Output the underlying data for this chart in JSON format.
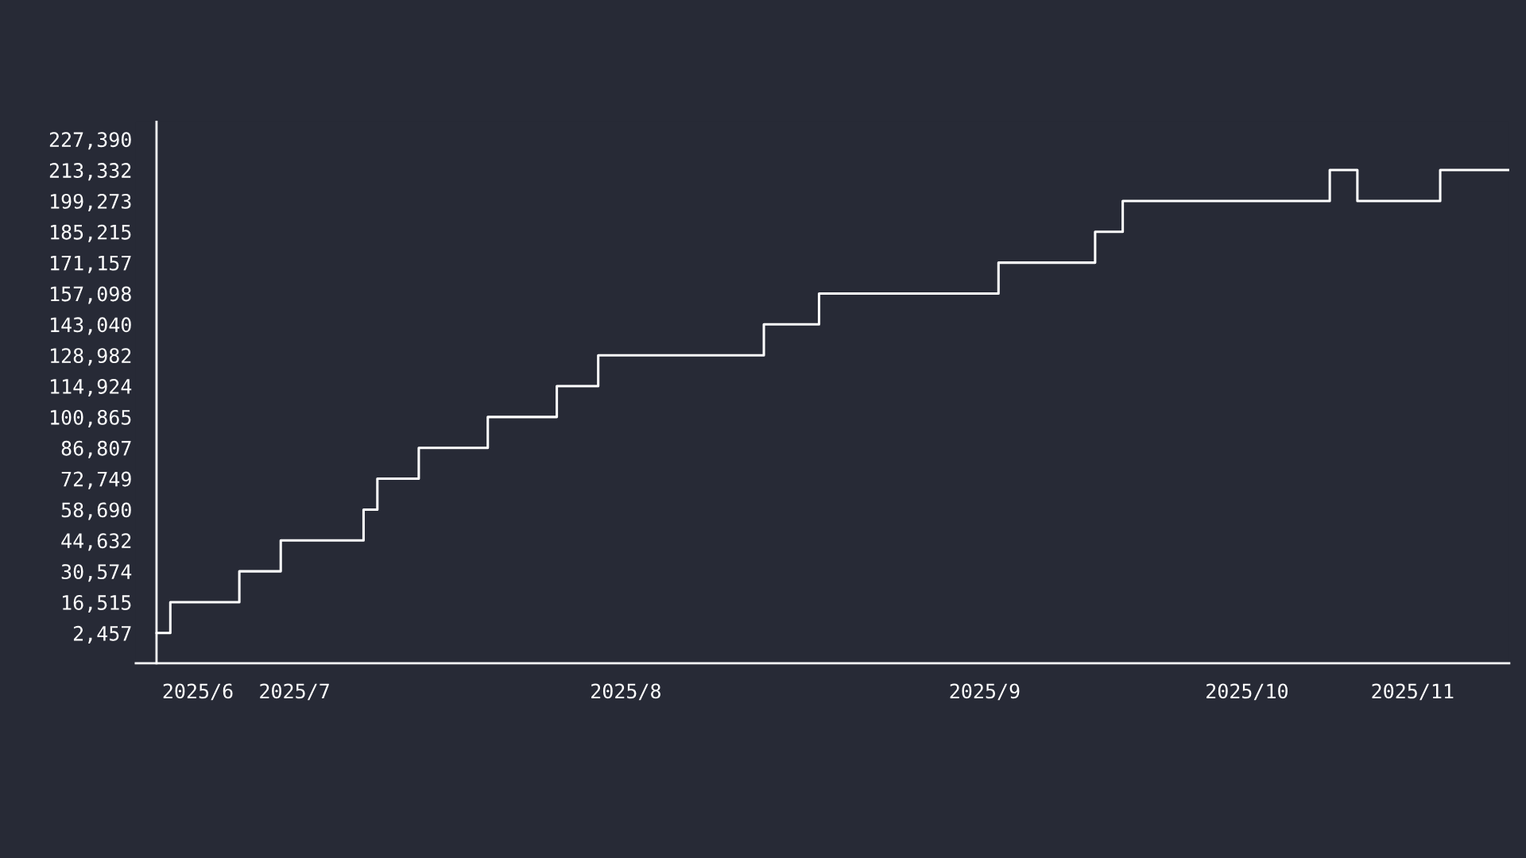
{
  "chart_data": {
    "type": "step",
    "categories": [
      null,
      null,
      null,
      "2025/6",
      null,
      null,
      null,
      null,
      null,
      null,
      "2025/7",
      null,
      null,
      null,
      null,
      null,
      null,
      null,
      null,
      null,
      null,
      null,
      null,
      null,
      null,
      null,
      null,
      null,
      null,
      null,
      null,
      null,
      null,
      null,
      "2025/8",
      null,
      null,
      null,
      null,
      null,
      null,
      null,
      null,
      null,
      null,
      null,
      null,
      null,
      null,
      null,
      null,
      null,
      null,
      null,
      null,
      null,
      null,
      null,
      null,
      null,
      "2025/9",
      null,
      null,
      null,
      null,
      null,
      null,
      null,
      null,
      null,
      null,
      null,
      null,
      null,
      null,
      null,
      null,
      null,
      null,
      "2025/10",
      null,
      null,
      null,
      null,
      null,
      null,
      null,
      null,
      null,
      null,
      null,
      "2025/11",
      null,
      null,
      null,
      null,
      null,
      null,
      null
    ],
    "series": [
      {
        "color": "#ffffff",
        "values": [
          2457,
          16515,
          16515,
          16515,
          16515,
          16515,
          30574,
          30574,
          30574,
          44632,
          44632,
          44632,
          44632,
          44632,
          44632,
          58690,
          72749,
          72749,
          72749,
          86807,
          86807,
          86807,
          86807,
          86807,
          100865,
          100865,
          100865,
          100865,
          100865,
          114924,
          114924,
          114924,
          128982,
          128982,
          128982,
          128982,
          128982,
          128982,
          128982,
          128982,
          128982,
          128982,
          128982,
          128982,
          143040,
          143040,
          143040,
          143040,
          157098,
          157098,
          157098,
          157098,
          157098,
          157098,
          157098,
          157098,
          157098,
          157098,
          157098,
          157098,
          157098,
          171157,
          171157,
          171157,
          171157,
          171157,
          171157,
          171157,
          185215,
          185215,
          199273,
          199273,
          199273,
          199273,
          199273,
          199273,
          199273,
          199273,
          199273,
          199273,
          199273,
          199273,
          199273,
          199273,
          199273,
          213332,
          213332,
          199273,
          199273,
          199273,
          199273,
          199273,
          199273,
          213332,
          213332,
          213332,
          213332,
          213332,
          213332
        ]
      }
    ],
    "ylim": [
      -11300,
      235300
    ],
    "yticks": [
      {
        "value": 2457,
        "label": "2,457"
      },
      {
        "value": 16515,
        "label": "16,515"
      },
      {
        "value": 30574,
        "label": "30,574"
      },
      {
        "value": 44632,
        "label": "44,632"
      },
      {
        "value": 58690,
        "label": "58,690"
      },
      {
        "value": 72749,
        "label": "72,749"
      },
      {
        "value": 86807,
        "label": "86,807"
      },
      {
        "value": 100865,
        "label": "100,865"
      },
      {
        "value": 114924,
        "label": "114,924"
      },
      {
        "value": 128982,
        "label": "128,982"
      },
      {
        "value": 143040,
        "label": "143,040"
      },
      {
        "value": 157098,
        "label": "157,098"
      },
      {
        "value": 171157,
        "label": "171,157"
      },
      {
        "value": 185215,
        "label": "185,215"
      },
      {
        "value": 199273,
        "label": "199,273"
      },
      {
        "value": 213332,
        "label": "213,332"
      },
      {
        "value": 227390,
        "label": "227,390"
      }
    ],
    "grid": false,
    "legend": false,
    "line_style": "solid"
  }
}
